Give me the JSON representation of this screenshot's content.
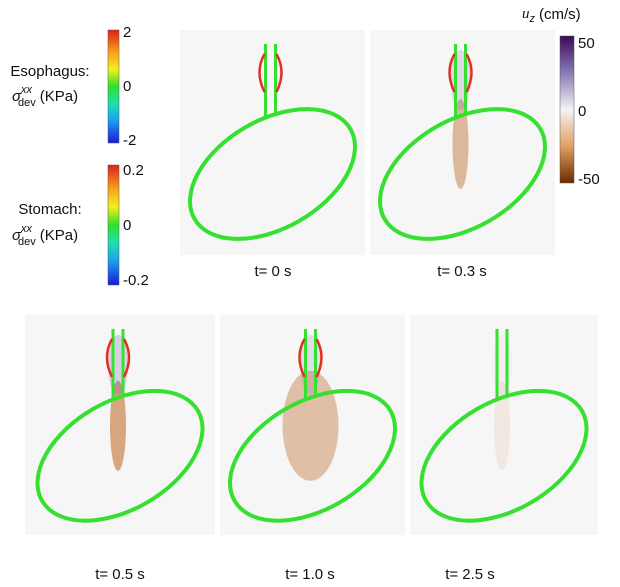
{
  "esophagus_bar": {
    "title": "Esophagus:",
    "symbol": "σ",
    "superscript": "xx",
    "subscript": "dev",
    "unit": "(KPa)",
    "ticks": [
      2,
      0,
      -2
    ]
  },
  "stomach_bar": {
    "title": "Stomach:",
    "symbol": "σ",
    "superscript": "xx",
    "subscript": "dev",
    "unit": "(KPa)",
    "ticks": [
      0.2,
      0,
      -0.2
    ]
  },
  "velocity_bar": {
    "symbol": "u",
    "subscript": "z",
    "unit": "(cm/s)",
    "ticks": [
      50,
      0,
      -50
    ]
  },
  "panels": [
    {
      "caption": "t= 0 s"
    },
    {
      "caption": "t= 0.3 s"
    },
    {
      "caption": "t= 0.5 s"
    },
    {
      "caption": "t= 1.0 s"
    },
    {
      "caption": "t= 2.5 s"
    }
  ]
}
